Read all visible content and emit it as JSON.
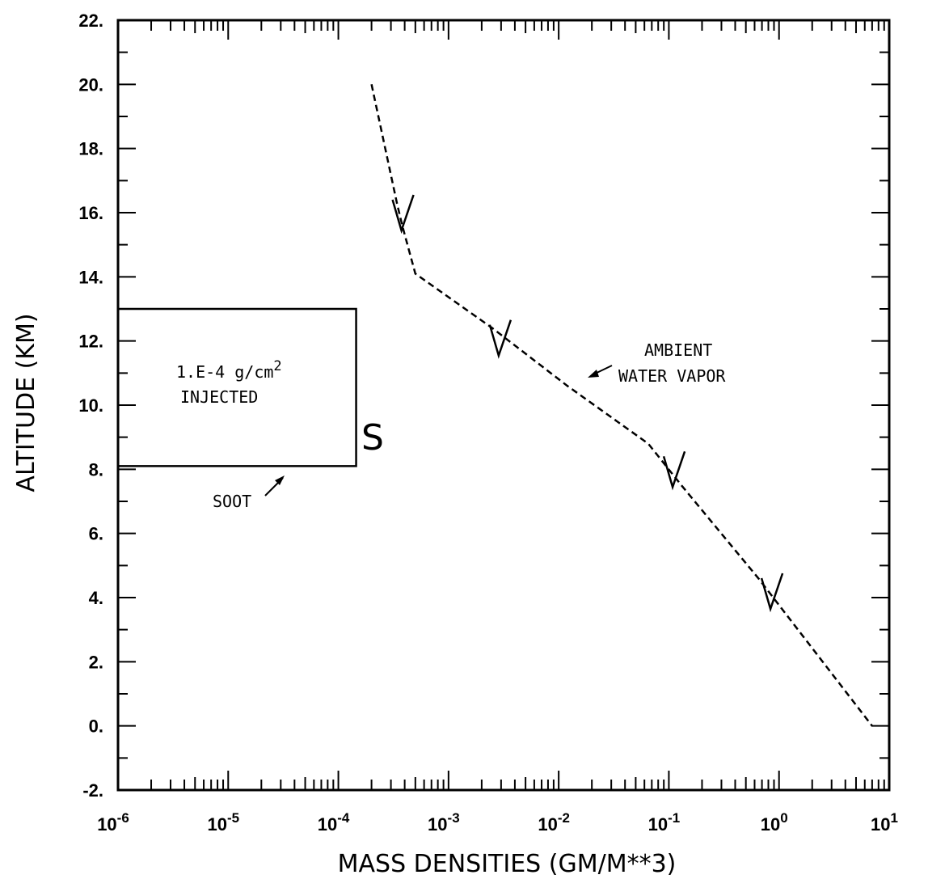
{
  "chart_data": {
    "type": "line",
    "title": "",
    "xlabel": "MASS DENSITIES (GM/M**3)",
    "ylabel": "ALTITUDE (KM)",
    "xscale": "log",
    "xlim": [
      1e-06,
      10
    ],
    "ylim": [
      -2,
      22
    ],
    "x_tick_base": "10",
    "x_tick_exponents": [
      "-6",
      "-5",
      "-4",
      "-3",
      "-2",
      "-1",
      "0",
      "1"
    ],
    "y_ticks": [
      "-2.",
      "0.",
      "2.",
      "4.",
      "6.",
      "8.",
      "10.",
      "12.",
      "14.",
      "16.",
      "18.",
      "20.",
      "22."
    ],
    "grid": false,
    "series": [
      {
        "style": "dashed",
        "marker_label": "V",
        "x": [
          0.0002,
          0.00034,
          0.00038,
          0.0005,
          0.0025,
          0.012,
          0.065,
          0.13,
          0.65,
          7.0
        ],
        "y": [
          20.0,
          16.3,
          15.6,
          14.1,
          12.4,
          10.6,
          8.8,
          7.5,
          4.6,
          0.0
        ],
        "markers": [
          {
            "x": 0.00038,
            "y": 15.9
          },
          {
            "x": 0.0029,
            "y": 12.0
          },
          {
            "x": 0.11,
            "y": 7.9
          },
          {
            "x": 0.85,
            "y": 4.1
          }
        ]
      }
    ],
    "soot_box": {
      "x_min": 1e-06,
      "x_max": 0.000145,
      "y_min": 8.1,
      "y_max": 13.0
    },
    "annotations": {
      "injected_line1": "1.E-4 g/cm",
      "injected_sup": "2",
      "injected_line2": "INJECTED",
      "soot": "SOOT",
      "soot_symbol": "S",
      "ambient_line1": "AMBIENT",
      "ambient_line2": "WATER VAPOR"
    }
  }
}
